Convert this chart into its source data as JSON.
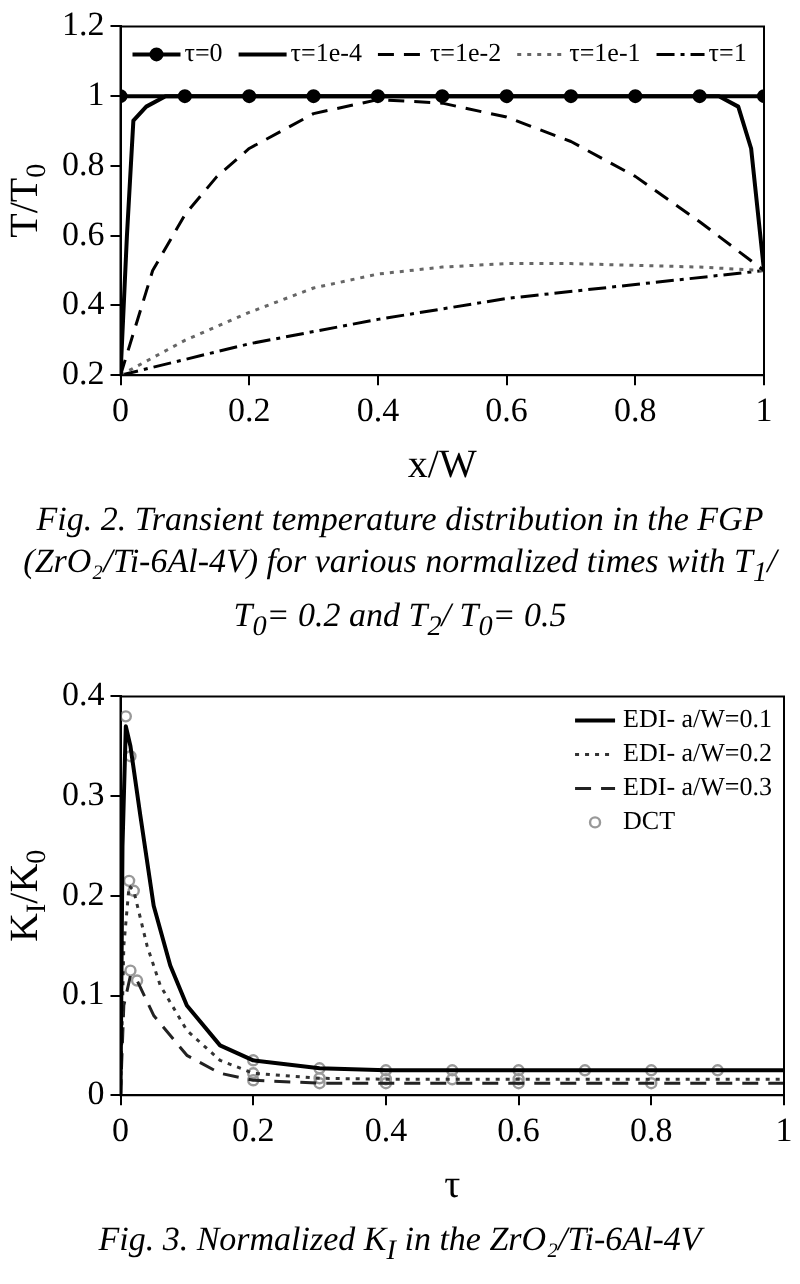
{
  "chart_data": [
    {
      "type": "line",
      "xlabel": "x/W",
      "ylabel": "T/T$_{0}$",
      "xlim": [
        0,
        1
      ],
      "xticks": [
        0,
        0.2,
        0.4,
        0.6,
        0.8,
        1
      ],
      "ylim": [
        0.2,
        1.2
      ],
      "yticks": [
        0.2,
        0.4,
        0.6,
        0.8,
        1,
        1.2
      ],
      "grid": false,
      "legend": "top",
      "annotations": [
        "Fig. 2.  Transient temperature distribution in the FGP (ZrO₂/Ti-6Al-4V) for various normalized times with T$_{1}$/ T$_{0}$= 0.2 and T$_{2}$/ T$_{0}$= 0.5"
      ],
      "series": [
        {
          "name": "τ=0",
          "color": "#000000",
          "marker": "circle",
          "line_style": "solid",
          "x": [
            0,
            0.1,
            0.2,
            0.3,
            0.4,
            0.5,
            0.6,
            0.7,
            0.8,
            0.9,
            1
          ],
          "values": [
            1,
            1,
            1,
            1,
            1,
            1,
            1,
            1,
            1,
            1,
            1
          ]
        },
        {
          "name": "τ=1e-4",
          "color": "#000000",
          "marker": "none",
          "line_style": "solid",
          "x": [
            0,
            0.01,
            0.02,
            0.04,
            0.07,
            0.93,
            0.96,
            0.98,
            1
          ],
          "values": [
            0.2,
            0.6,
            0.93,
            0.97,
            1,
            1,
            0.97,
            0.85,
            0.5
          ]
        },
        {
          "name": "τ=1e-2",
          "color": "#000000",
          "marker": "none",
          "line_style": "dashed",
          "x": [
            0,
            0.05,
            0.1,
            0.15,
            0.2,
            0.3,
            0.4,
            0.5,
            0.6,
            0.7,
            0.8,
            0.9,
            1
          ],
          "values": [
            0.2,
            0.5,
            0.66,
            0.77,
            0.85,
            0.95,
            0.99,
            0.98,
            0.94,
            0.87,
            0.77,
            0.64,
            0.5
          ]
        },
        {
          "name": "τ=1e-1",
          "color": "#666666",
          "marker": "none",
          "line_style": "dotted",
          "x": [
            0,
            0.1,
            0.2,
            0.3,
            0.4,
            0.5,
            0.6,
            0.7,
            0.8,
            0.9,
            1
          ],
          "values": [
            0.2,
            0.3,
            0.38,
            0.45,
            0.49,
            0.51,
            0.52,
            0.52,
            0.515,
            0.51,
            0.5
          ]
        },
        {
          "name": "τ=1",
          "color": "#000000",
          "marker": "none",
          "line_style": "dashdot",
          "x": [
            0,
            0.2,
            0.4,
            0.6,
            0.8,
            1
          ],
          "values": [
            0.2,
            0.29,
            0.36,
            0.42,
            0.46,
            0.5
          ]
        }
      ]
    },
    {
      "type": "line",
      "xlabel": "τ",
      "ylabel": "K$_{I}$/K$_{0}$",
      "xlim": [
        0,
        1
      ],
      "xticks": [
        0,
        0.2,
        0.4,
        0.6,
        0.8,
        1
      ],
      "ylim": [
        0,
        0.4
      ],
      "yticks": [
        0,
        0.1,
        0.2,
        0.3,
        0.4
      ],
      "grid": false,
      "legend": "top right",
      "annotations": [
        "Fig. 3.  Normalized K$_{I}$ in the ZrO₂/Ti-6Al-4V"
      ],
      "series": [
        {
          "name": "EDI- a/W=0.1",
          "color": "#000000",
          "marker": "none",
          "line_style": "solid",
          "x": [
            0,
            0.003,
            0.008,
            0.015,
            0.03,
            0.05,
            0.075,
            0.1,
            0.15,
            0.2,
            0.3,
            0.4,
            1
          ],
          "values": [
            0,
            0.25,
            0.37,
            0.35,
            0.28,
            0.19,
            0.13,
            0.09,
            0.05,
            0.035,
            0.027,
            0.025,
            0.025
          ]
        },
        {
          "name": "EDI- a/W=0.2",
          "color": "#333333",
          "marker": "none",
          "line_style": "dotted",
          "x": [
            0,
            0.005,
            0.013,
            0.02,
            0.04,
            0.06,
            0.1,
            0.15,
            0.2,
            0.3,
            0.4,
            1
          ],
          "values": [
            0,
            0.15,
            0.21,
            0.205,
            0.15,
            0.11,
            0.065,
            0.035,
            0.022,
            0.017,
            0.016,
            0.016
          ]
        },
        {
          "name": "EDI- a/W=0.3",
          "color": "#222222",
          "marker": "none",
          "line_style": "dashed",
          "x": [
            0,
            0.005,
            0.015,
            0.025,
            0.05,
            0.1,
            0.15,
            0.2,
            0.3,
            1
          ],
          "values": [
            0,
            0.09,
            0.12,
            0.115,
            0.08,
            0.04,
            0.022,
            0.015,
            0.012,
            0.012
          ]
        },
        {
          "name": "DCT",
          "type": "scatter",
          "color": "#999999",
          "marker": "circle",
          "x": [
            0.008,
            0.015,
            0.2,
            0.3,
            0.4,
            0.5,
            0.6,
            0.7,
            0.8,
            0.9,
            0.013,
            0.02,
            0.2,
            0.3,
            0.4,
            0.5,
            0.6,
            0.015,
            0.025,
            0.2,
            0.3,
            0.4,
            0.6,
            0.8
          ],
          "values": [
            0.38,
            0.34,
            0.035,
            0.027,
            0.025,
            0.025,
            0.025,
            0.025,
            0.025,
            0.025,
            0.215,
            0.205,
            0.022,
            0.017,
            0.016,
            0.016,
            0.016,
            0.125,
            0.115,
            0.015,
            0.012,
            0.012,
            0.012,
            0.012
          ]
        }
      ]
    }
  ]
}
